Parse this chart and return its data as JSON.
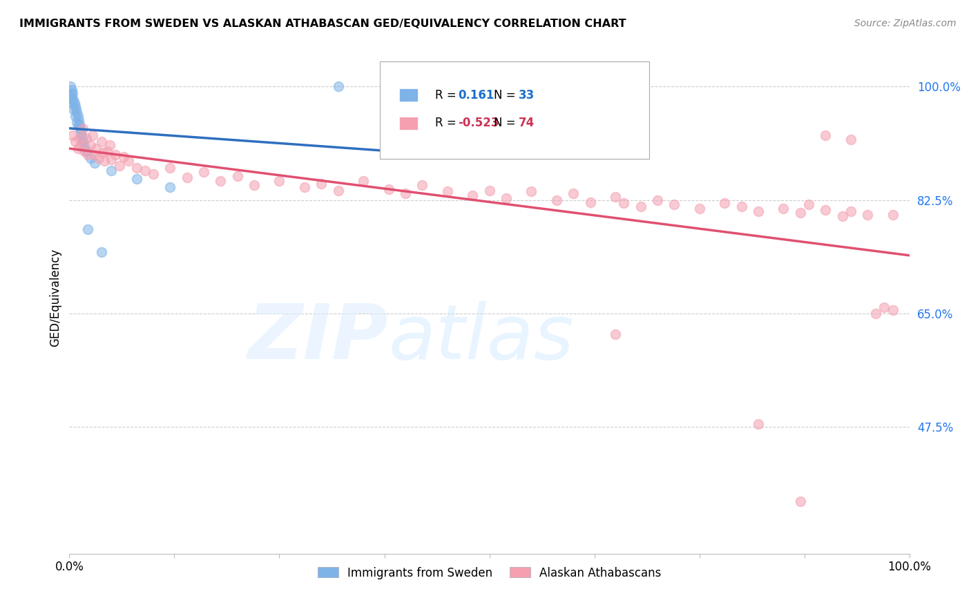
{
  "title": "IMMIGRANTS FROM SWEDEN VS ALASKAN ATHABASCAN GED/EQUIVALENCY CORRELATION CHART",
  "source": "Source: ZipAtlas.com",
  "ylabel": "GED/Equivalency",
  "ytick_labels": [
    "100.0%",
    "82.5%",
    "65.0%",
    "47.5%"
  ],
  "ytick_values": [
    1.0,
    0.825,
    0.65,
    0.475
  ],
  "xmin": 0.0,
  "xmax": 1.0,
  "ymin": 0.28,
  "ymax": 1.07,
  "legend_R1": "0.161",
  "legend_N1": "33",
  "legend_R2": "-0.523",
  "legend_N2": "74",
  "blue_color": "#7EB3E8",
  "pink_color": "#F4A0B0",
  "blue_line_color": "#2E6FBF",
  "pink_line_color": "#E05070",
  "blue_text_color": "#1a6fcc",
  "pink_text_color": "#cc3355",
  "sweden_points": [
    [
      0.001,
      1.0
    ],
    [
      0.002,
      0.99
    ],
    [
      0.002,
      0.985
    ],
    [
      0.003,
      0.995
    ],
    [
      0.003,
      0.98
    ],
    [
      0.004,
      0.99
    ],
    [
      0.004,
      0.975
    ],
    [
      0.005,
      0.98
    ],
    [
      0.005,
      0.965
    ],
    [
      0.006,
      0.975
    ],
    [
      0.007,
      0.97
    ],
    [
      0.007,
      0.955
    ],
    [
      0.008,
      0.965
    ],
    [
      0.009,
      0.96
    ],
    [
      0.009,
      0.945
    ],
    [
      0.01,
      0.955
    ],
    [
      0.01,
      0.94
    ],
    [
      0.011,
      0.948
    ],
    [
      0.012,
      0.942
    ],
    [
      0.013,
      0.935
    ],
    [
      0.014,
      0.928
    ],
    [
      0.015,
      0.922
    ],
    [
      0.016,
      0.915
    ],
    [
      0.018,
      0.908
    ],
    [
      0.02,
      0.9
    ],
    [
      0.025,
      0.89
    ],
    [
      0.03,
      0.882
    ],
    [
      0.022,
      0.78
    ],
    [
      0.038,
      0.745
    ],
    [
      0.32,
      1.0
    ],
    [
      0.05,
      0.87
    ],
    [
      0.08,
      0.858
    ],
    [
      0.12,
      0.845
    ]
  ],
  "alaska_points": [
    [
      0.004,
      0.925
    ],
    [
      0.007,
      0.915
    ],
    [
      0.01,
      0.905
    ],
    [
      0.012,
      0.92
    ],
    [
      0.014,
      0.91
    ],
    [
      0.016,
      0.935
    ],
    [
      0.018,
      0.9
    ],
    [
      0.02,
      0.92
    ],
    [
      0.022,
      0.895
    ],
    [
      0.025,
      0.91
    ],
    [
      0.028,
      0.925
    ],
    [
      0.03,
      0.895
    ],
    [
      0.032,
      0.905
    ],
    [
      0.035,
      0.89
    ],
    [
      0.038,
      0.915
    ],
    [
      0.04,
      0.898
    ],
    [
      0.042,
      0.885
    ],
    [
      0.045,
      0.9
    ],
    [
      0.048,
      0.91
    ],
    [
      0.05,
      0.888
    ],
    [
      0.055,
      0.895
    ],
    [
      0.06,
      0.878
    ],
    [
      0.065,
      0.892
    ],
    [
      0.07,
      0.885
    ],
    [
      0.08,
      0.875
    ],
    [
      0.09,
      0.87
    ],
    [
      0.1,
      0.865
    ],
    [
      0.12,
      0.875
    ],
    [
      0.14,
      0.86
    ],
    [
      0.16,
      0.868
    ],
    [
      0.18,
      0.855
    ],
    [
      0.2,
      0.862
    ],
    [
      0.22,
      0.848
    ],
    [
      0.25,
      0.855
    ],
    [
      0.28,
      0.845
    ],
    [
      0.3,
      0.85
    ],
    [
      0.32,
      0.84
    ],
    [
      0.35,
      0.855
    ],
    [
      0.38,
      0.842
    ],
    [
      0.4,
      0.835
    ],
    [
      0.42,
      0.848
    ],
    [
      0.45,
      0.838
    ],
    [
      0.48,
      0.832
    ],
    [
      0.5,
      0.84
    ],
    [
      0.52,
      0.828
    ],
    [
      0.55,
      0.838
    ],
    [
      0.58,
      0.825
    ],
    [
      0.6,
      0.835
    ],
    [
      0.62,
      0.822
    ],
    [
      0.65,
      0.83
    ],
    [
      0.65,
      0.618
    ],
    [
      0.66,
      0.82
    ],
    [
      0.68,
      0.815
    ],
    [
      0.7,
      0.825
    ],
    [
      0.72,
      0.818
    ],
    [
      0.75,
      0.812
    ],
    [
      0.78,
      0.82
    ],
    [
      0.8,
      0.815
    ],
    [
      0.82,
      0.48
    ],
    [
      0.82,
      0.808
    ],
    [
      0.85,
      0.812
    ],
    [
      0.87,
      0.805
    ],
    [
      0.88,
      0.818
    ],
    [
      0.9,
      0.81
    ],
    [
      0.92,
      0.8
    ],
    [
      0.93,
      0.808
    ],
    [
      0.95,
      0.802
    ],
    [
      0.96,
      0.65
    ],
    [
      0.97,
      0.66
    ],
    [
      0.98,
      0.655
    ],
    [
      0.98,
      0.802
    ],
    [
      0.87,
      0.36
    ],
    [
      0.9,
      0.925
    ],
    [
      0.93,
      0.918
    ]
  ]
}
